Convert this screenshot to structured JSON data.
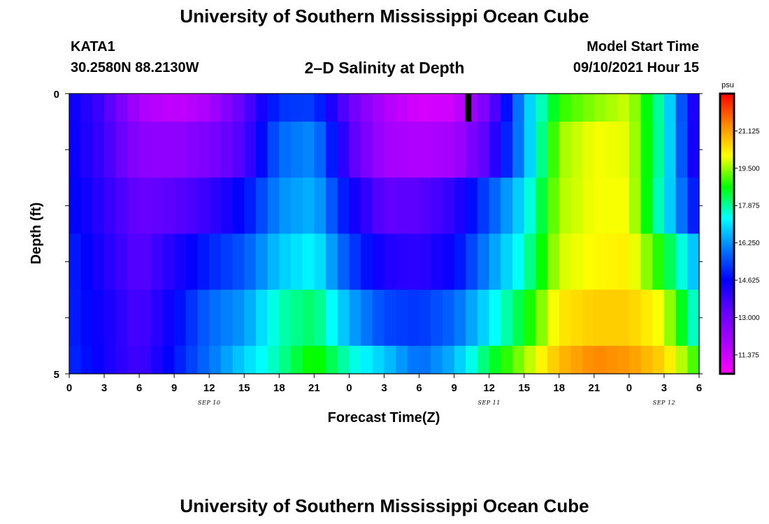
{
  "page": {
    "title_top": "University of Southern Mississippi Ocean Cube",
    "title_bottom": "University of Southern Mississippi Ocean Cube",
    "station_id": "KATA1",
    "station_coords": "30.2580N  88.2130W",
    "plot_title": "2–D Salinity at Depth",
    "model_start_label": "Model Start Time",
    "model_start_value": "09/10/2021 Hour 15"
  },
  "chart_data": {
    "type": "heatmap",
    "title": "2–D Salinity at Depth",
    "xlabel": "Forecast Time(Z)",
    "ylabel": "Depth (ft)",
    "x_tick_labels": [
      "0",
      "3",
      "6",
      "9",
      "12",
      "15",
      "18",
      "21",
      "0",
      "3",
      "6",
      "9",
      "12",
      "15",
      "18",
      "21",
      "0",
      "3",
      "6"
    ],
    "date_labels": [
      {
        "text": "SEP 10",
        "tick_index": 4
      },
      {
        "text": "SEP 11",
        "tick_index": 12
      },
      {
        "text": "SEP 12",
        "tick_index": 17
      }
    ],
    "y_tick_labels": [
      {
        "value": 0,
        "text": "0"
      },
      {
        "value": 5,
        "text": "5"
      }
    ],
    "ylim": [
      0,
      5
    ],
    "x_range_hours": [
      0,
      54
    ],
    "colorbar": {
      "unit": "psu",
      "min": 10.55,
      "max": 22.75,
      "tick_values": [
        11.375,
        13.0,
        14.625,
        16.25,
        17.875,
        19.5,
        21.125
      ],
      "tick_labels": [
        "11.375",
        "13.000",
        "14.625",
        "16.250",
        "17.875",
        "19.500",
        "21.125"
      ],
      "colors": [
        "#ff00ff",
        "#aa00ff",
        "#6600ff",
        "#0000ff",
        "#0077ff",
        "#00ffff",
        "#00ff00",
        "#ffff00",
        "#ff8800",
        "#ff0000"
      ]
    },
    "depth_layers": [
      0.0,
      0.5,
      1.5,
      2.5,
      3.5,
      4.5
    ],
    "time_hours": [
      0,
      3,
      6,
      9,
      12,
      15,
      18,
      21,
      24,
      27,
      30,
      33,
      36,
      39,
      42,
      45,
      48,
      51,
      54
    ],
    "salinity": [
      [
        14.6,
        13.7,
        11.9,
        11.5,
        11.9,
        13.4,
        15.2,
        15.3,
        13.2,
        11.8,
        11.2,
        11.3,
        13.0,
        16.5,
        18.9,
        19.4,
        19.8,
        17.5,
        13.6
      ],
      [
        14.6,
        13.8,
        12.5,
        12.4,
        12.8,
        13.6,
        15.8,
        16.2,
        13.6,
        12.0,
        11.8,
        12.0,
        13.6,
        16.4,
        19.5,
        20.0,
        19.9,
        17.5,
        13.7
      ],
      [
        14.8,
        14.0,
        13.2,
        13.4,
        13.9,
        14.7,
        16.2,
        16.6,
        14.6,
        13.3,
        13.4,
        14.0,
        15.5,
        17.1,
        19.6,
        20.0,
        20.0,
        17.3,
        14.5
      ],
      [
        15.0,
        14.2,
        13.4,
        14.2,
        15.0,
        15.6,
        16.8,
        17.3,
        15.4,
        14.2,
        14.0,
        14.6,
        16.2,
        17.6,
        19.8,
        20.1,
        20.2,
        18.6,
        16.4
      ],
      [
        15.0,
        14.4,
        13.6,
        14.6,
        15.8,
        16.3,
        17.7,
        18.2,
        16.5,
        15.4,
        15.2,
        15.8,
        17.1,
        18.5,
        20.3,
        20.6,
        20.6,
        19.9,
        17.2
      ],
      [
        15.1,
        14.4,
        13.7,
        14.8,
        15.9,
        16.9,
        17.8,
        18.9,
        17.6,
        16.8,
        15.8,
        16.6,
        18.3,
        19.5,
        20.8,
        21.4,
        21.2,
        20.5,
        18.8
      ]
    ],
    "current_time_marker_hours": 34
  }
}
